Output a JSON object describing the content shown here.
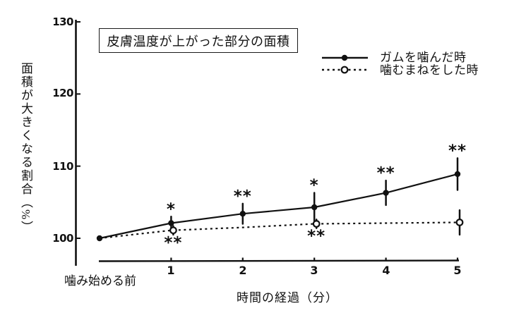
{
  "colors": {
    "ink": "#111111",
    "background": "#ffffff"
  },
  "chart_data": {
    "type": "line",
    "title": "皮膚温度が上がった部分の面積",
    "ylabel": "面積が大きくなる割合（%）",
    "xlabel": "時間の経過（分）",
    "x_first_label": "噛み始める前",
    "yticks": [
      "130",
      "120",
      "110",
      "100"
    ],
    "xticks": [
      "1",
      "2",
      "3",
      "4",
      "5"
    ],
    "ylim": [
      100,
      130
    ],
    "x": [
      0,
      1,
      2,
      3,
      4,
      5
    ],
    "legend_position": "top-right",
    "grid": false,
    "series": [
      {
        "name": "ガムを噛んだ時",
        "style": "solid",
        "marker": "filled-circle",
        "values": [
          100,
          102.1,
          103.4,
          104.3,
          106.3,
          108.9
        ],
        "errors": [
          0,
          0.9,
          1.4,
          2.0,
          1.7,
          2.2
        ],
        "marker_at": [
          0,
          1,
          2,
          3,
          4,
          5
        ]
      },
      {
        "name": "噛むまねをした時",
        "style": "dotted",
        "marker": "open-circle",
        "values": [
          100,
          101.1,
          101.5,
          102.0,
          102.1,
          102.2
        ],
        "errors": [
          0,
          0.6,
          0,
          0.6,
          0,
          1.7
        ],
        "marker_at": [
          1,
          3,
          5
        ]
      }
    ],
    "annotations": [
      {
        "minute": 1,
        "series": 0,
        "text": "*",
        "position": "above"
      },
      {
        "minute": 2,
        "series": 0,
        "text": "**",
        "position": "above"
      },
      {
        "minute": 3,
        "series": 0,
        "text": "*",
        "position": "above"
      },
      {
        "minute": 4,
        "series": 0,
        "text": "**",
        "position": "above"
      },
      {
        "minute": 5,
        "series": 0,
        "text": "**",
        "position": "above"
      },
      {
        "minute": 1,
        "series": 1,
        "text": "**",
        "position": "below"
      },
      {
        "minute": 3,
        "series": 1,
        "text": "**",
        "position": "below"
      }
    ]
  }
}
